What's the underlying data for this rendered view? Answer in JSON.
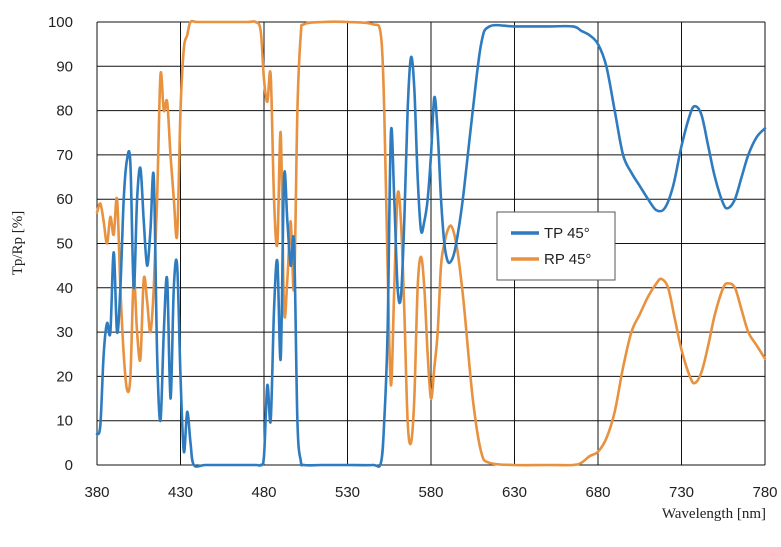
{
  "chart_data": {
    "type": "line",
    "title": "",
    "xlabel": "Wavelength [nm]",
    "ylabel": "Tp/Rp [%]",
    "xlim": [
      380,
      780
    ],
    "ylim": [
      0,
      100
    ],
    "xticks": [
      380,
      430,
      480,
      530,
      580,
      630,
      680,
      730,
      780
    ],
    "yticks": [
      0,
      10,
      20,
      30,
      40,
      50,
      60,
      70,
      80,
      90,
      100
    ],
    "grid": true,
    "legend": "inside-right",
    "series": [
      {
        "name": "TP 45°",
        "color": "#2e7cbf",
        "points": [
          [
            380,
            7
          ],
          [
            382,
            9
          ],
          [
            384,
            25
          ],
          [
            386,
            32
          ],
          [
            388,
            30
          ],
          [
            390,
            48
          ],
          [
            392,
            30
          ],
          [
            394,
            40
          ],
          [
            396,
            60
          ],
          [
            398,
            69
          ],
          [
            400,
            68
          ],
          [
            402,
            40
          ],
          [
            404,
            60
          ],
          [
            406,
            67
          ],
          [
            408,
            55
          ],
          [
            410,
            45
          ],
          [
            412,
            53
          ],
          [
            414,
            65
          ],
          [
            416,
            25
          ],
          [
            418,
            10
          ],
          [
            420,
            30
          ],
          [
            422,
            42
          ],
          [
            424,
            15
          ],
          [
            426,
            40
          ],
          [
            428,
            45
          ],
          [
            430,
            20
          ],
          [
            432,
            3
          ],
          [
            434,
            12
          ],
          [
            436,
            5
          ],
          [
            438,
            0
          ],
          [
            445,
            0
          ],
          [
            460,
            0
          ],
          [
            475,
            0
          ],
          [
            478,
            0
          ],
          [
            480,
            2
          ],
          [
            482,
            18
          ],
          [
            484,
            10
          ],
          [
            486,
            35
          ],
          [
            488,
            46
          ],
          [
            490,
            24
          ],
          [
            492,
            65
          ],
          [
            494,
            55
          ],
          [
            496,
            45
          ],
          [
            498,
            50
          ],
          [
            500,
            10
          ],
          [
            502,
            1
          ],
          [
            504,
            0
          ],
          [
            515,
            0
          ],
          [
            530,
            0
          ],
          [
            545,
            0
          ],
          [
            550,
            0.5
          ],
          [
            552,
            10
          ],
          [
            554,
            30
          ],
          [
            556,
            75
          ],
          [
            558,
            60
          ],
          [
            560,
            40
          ],
          [
            562,
            38
          ],
          [
            564,
            55
          ],
          [
            566,
            80
          ],
          [
            568,
            92
          ],
          [
            570,
            85
          ],
          [
            572,
            65
          ],
          [
            574,
            53
          ],
          [
            576,
            55
          ],
          [
            578,
            60
          ],
          [
            580,
            70
          ],
          [
            582,
            83
          ],
          [
            584,
            75
          ],
          [
            586,
            60
          ],
          [
            588,
            50
          ],
          [
            590,
            46
          ],
          [
            592,
            46
          ],
          [
            594,
            48
          ],
          [
            596,
            52
          ],
          [
            598,
            57
          ],
          [
            600,
            63
          ],
          [
            605,
            80
          ],
          [
            610,
            95
          ],
          [
            615,
            99
          ],
          [
            630,
            99
          ],
          [
            650,
            99
          ],
          [
            665,
            99
          ],
          [
            670,
            98
          ],
          [
            675,
            97
          ],
          [
            680,
            95
          ],
          [
            685,
            90
          ],
          [
            690,
            80
          ],
          [
            695,
            70
          ],
          [
            700,
            66
          ],
          [
            705,
            63
          ],
          [
            710,
            60
          ],
          [
            715,
            57.5
          ],
          [
            720,
            58
          ],
          [
            725,
            63
          ],
          [
            730,
            72
          ],
          [
            735,
            79
          ],
          [
            738,
            81
          ],
          [
            742,
            79
          ],
          [
            746,
            72
          ],
          [
            750,
            65
          ],
          [
            755,
            59
          ],
          [
            758,
            58
          ],
          [
            762,
            60
          ],
          [
            766,
            65
          ],
          [
            770,
            70
          ],
          [
            775,
            74
          ],
          [
            780,
            76
          ]
        ]
      },
      {
        "name": "RP 45°",
        "color": "#e8913f",
        "points": [
          [
            380,
            57
          ],
          [
            382,
            59
          ],
          [
            384,
            55
          ],
          [
            386,
            50
          ],
          [
            388,
            56
          ],
          [
            390,
            52
          ],
          [
            392,
            60
          ],
          [
            394,
            40
          ],
          [
            396,
            25
          ],
          [
            398,
            17
          ],
          [
            400,
            20
          ],
          [
            402,
            42
          ],
          [
            404,
            30
          ],
          [
            406,
            24
          ],
          [
            408,
            42
          ],
          [
            410,
            37
          ],
          [
            412,
            30
          ],
          [
            414,
            40
          ],
          [
            416,
            60
          ],
          [
            418,
            88
          ],
          [
            420,
            80
          ],
          [
            422,
            82
          ],
          [
            424,
            70
          ],
          [
            426,
            60
          ],
          [
            428,
            52
          ],
          [
            430,
            80
          ],
          [
            432,
            94
          ],
          [
            434,
            97
          ],
          [
            436,
            100
          ],
          [
            440,
            100
          ],
          [
            455,
            100
          ],
          [
            470,
            100
          ],
          [
            475,
            100
          ],
          [
            478,
            98
          ],
          [
            480,
            87
          ],
          [
            482,
            82
          ],
          [
            484,
            88
          ],
          [
            486,
            60
          ],
          [
            488,
            50
          ],
          [
            490,
            75
          ],
          [
            492,
            35
          ],
          [
            494,
            42
          ],
          [
            496,
            55
          ],
          [
            498,
            40
          ],
          [
            500,
            80
          ],
          [
            502,
            97
          ],
          [
            504,
            99.5
          ],
          [
            515,
            100
          ],
          [
            530,
            100
          ],
          [
            545,
            99.5
          ],
          [
            550,
            97
          ],
          [
            552,
            80
          ],
          [
            554,
            45
          ],
          [
            556,
            18
          ],
          [
            558,
            40
          ],
          [
            560,
            61
          ],
          [
            562,
            55
          ],
          [
            564,
            35
          ],
          [
            566,
            10
          ],
          [
            568,
            5
          ],
          [
            570,
            15
          ],
          [
            572,
            40
          ],
          [
            574,
            47
          ],
          [
            576,
            40
          ],
          [
            578,
            25
          ],
          [
            580,
            15
          ],
          [
            582,
            22
          ],
          [
            584,
            30
          ],
          [
            586,
            45
          ],
          [
            588,
            50
          ],
          [
            590,
            53
          ],
          [
            592,
            54
          ],
          [
            594,
            52
          ],
          [
            596,
            48
          ],
          [
            598,
            42
          ],
          [
            600,
            35
          ],
          [
            605,
            15
          ],
          [
            610,
            3
          ],
          [
            615,
            0.5
          ],
          [
            630,
            0
          ],
          [
            650,
            0
          ],
          [
            665,
            0
          ],
          [
            670,
            0.5
          ],
          [
            675,
            2
          ],
          [
            680,
            3
          ],
          [
            685,
            6
          ],
          [
            690,
            12
          ],
          [
            695,
            22
          ],
          [
            700,
            30
          ],
          [
            705,
            34
          ],
          [
            710,
            38
          ],
          [
            715,
            41
          ],
          [
            718,
            42
          ],
          [
            722,
            40
          ],
          [
            726,
            33
          ],
          [
            730,
            26
          ],
          [
            735,
            20
          ],
          [
            738,
            18.5
          ],
          [
            742,
            21
          ],
          [
            746,
            27
          ],
          [
            750,
            34
          ],
          [
            755,
            40
          ],
          [
            758,
            41
          ],
          [
            762,
            40
          ],
          [
            766,
            35
          ],
          [
            770,
            30
          ],
          [
            775,
            27
          ],
          [
            780,
            24
          ]
        ]
      }
    ]
  }
}
